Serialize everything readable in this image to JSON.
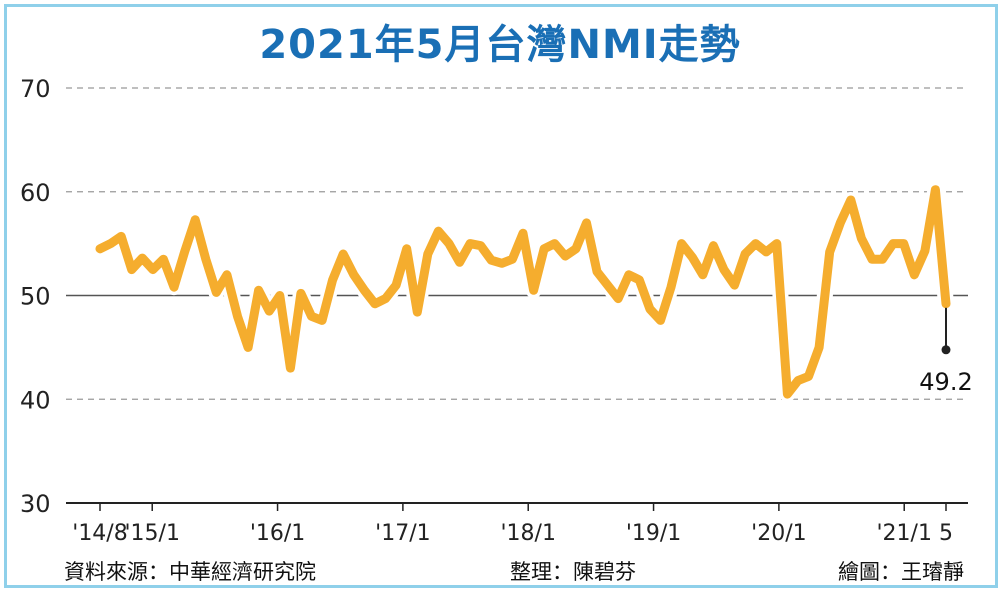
{
  "chart_data": {
    "type": "line",
    "title": "2021年5月台灣NMI走勢",
    "ylim": [
      30,
      70
    ],
    "y_ticks": [
      "70",
      "60",
      "50",
      "40",
      "30"
    ],
    "x_tick_labels": [
      "'14/8",
      "'15/1",
      "'16/1",
      "'17/1",
      "'18/1",
      "'19/1",
      "'20/1",
      "'21/1",
      "5"
    ],
    "grid": "horizontal-dashed",
    "series": [
      {
        "values": [
          54.5,
          55.0,
          55.7,
          52.5,
          53.6,
          52.5,
          53.5,
          50.8,
          54.2,
          57.3,
          53.5,
          50.3,
          52.0,
          48.0,
          45.0,
          50.5,
          48.5,
          50.0,
          43.0,
          50.2,
          48.0,
          47.6,
          51.5,
          54.0,
          52.0,
          50.5,
          49.2,
          49.7,
          51.0,
          54.5,
          48.4,
          54.0,
          56.2,
          55.0,
          53.2,
          55.0,
          54.8,
          53.4,
          53.1,
          53.5,
          56.0,
          50.5,
          54.5,
          55.0,
          53.8,
          54.5,
          57.0,
          52.3,
          51.0,
          49.7,
          52.0,
          51.5,
          48.7,
          47.6,
          50.8,
          55.0,
          53.7,
          52.0,
          54.8,
          52.5,
          51.0,
          54.0,
          55.0,
          54.2,
          55.0,
          40.5,
          41.8,
          42.2,
          45.0,
          54.2,
          57.0,
          59.2,
          55.5,
          53.5,
          53.5,
          55.0,
          55.0,
          52.0,
          54.3,
          60.2,
          49.2
        ],
        "color": "#f5ad2e"
      }
    ],
    "annotations": [
      {
        "label": "49.2",
        "point": "last"
      }
    ]
  },
  "footer": {
    "source": "資料來源：中華經濟研究院",
    "compiler": "整理：陳碧芬",
    "illustrator": "繪圖：王璿靜"
  }
}
